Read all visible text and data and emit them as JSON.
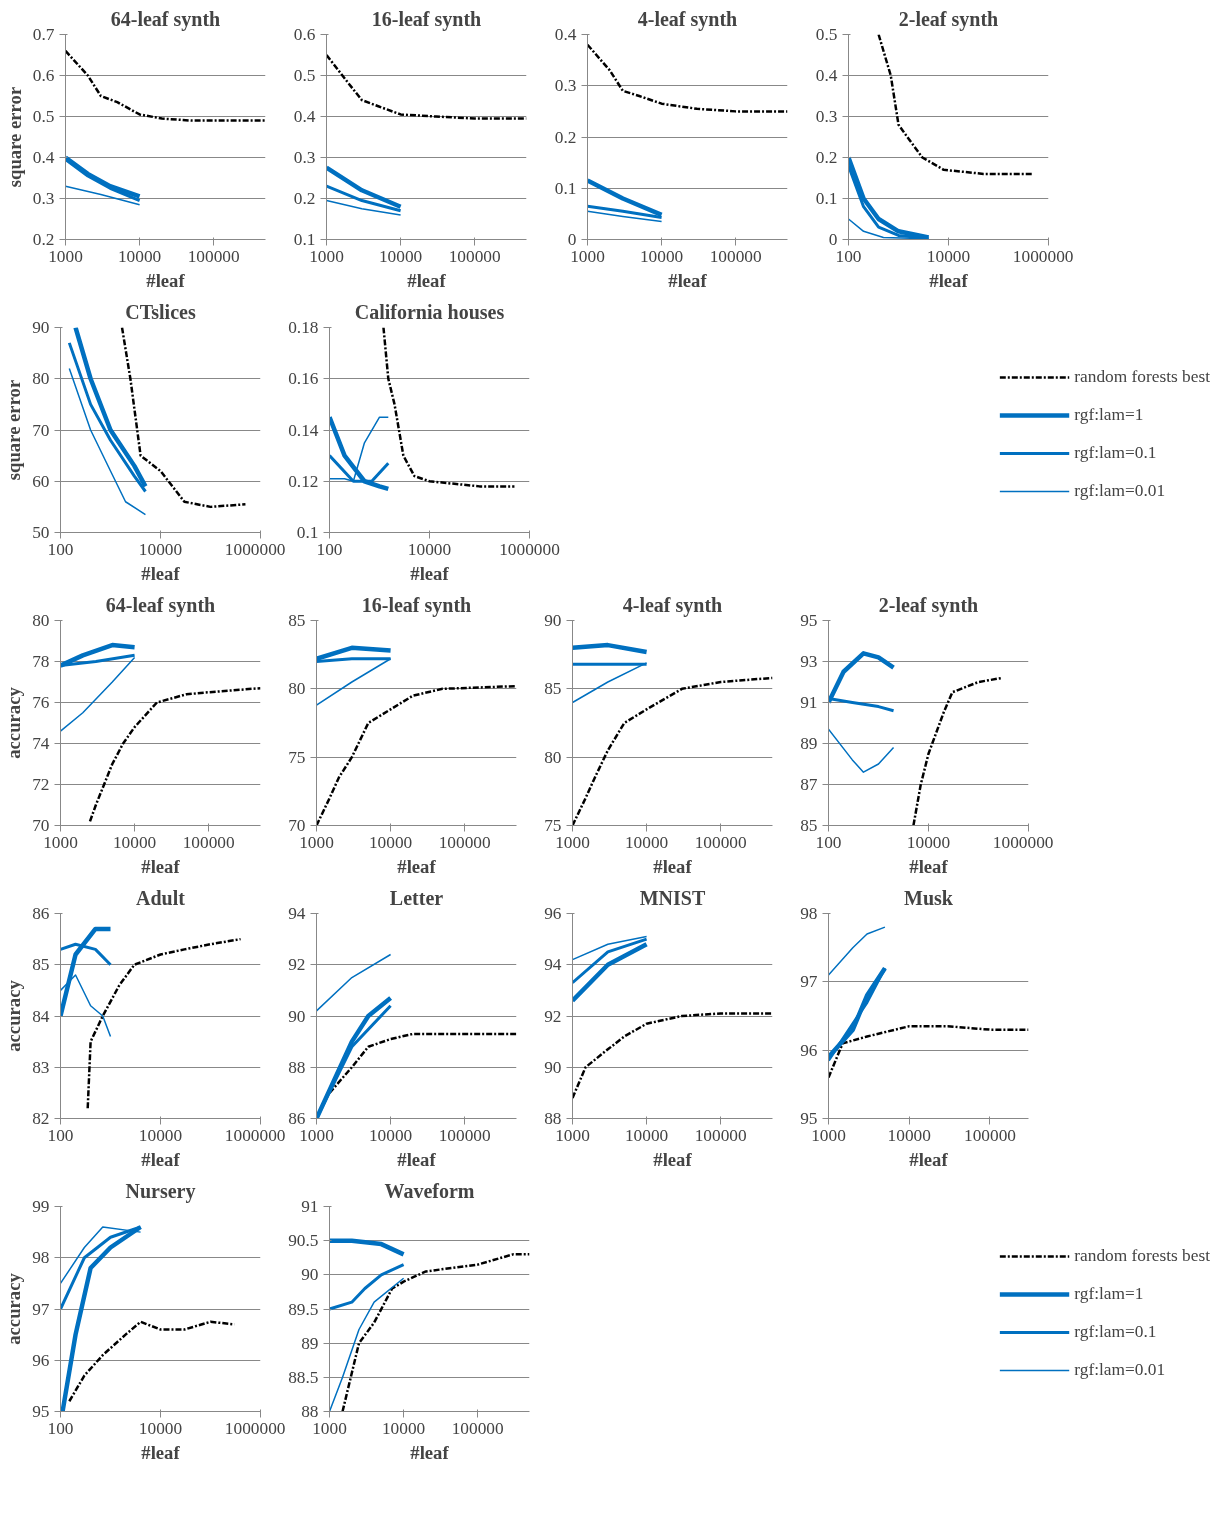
{
  "chart_data": [
    {
      "type": "line",
      "title": "64-leaf synth",
      "xlabel": "#leaf",
      "ylabel": "square error",
      "log": "x",
      "grid": "y",
      "xlim": [
        1000,
        500000
      ],
      "xticks": [
        1000,
        10000,
        100000
      ],
      "ylim": [
        0.2,
        0.7
      ],
      "yticks": [
        0.2,
        0.3,
        0.4,
        0.5,
        0.6,
        0.7
      ],
      "series": [
        {
          "color": "#000000",
          "line_style": "dashdot",
          "x": [
            1000,
            2000,
            3000,
            5000,
            10000,
            20000,
            50000,
            100000,
            500000
          ],
          "values": [
            0.66,
            0.6,
            0.55,
            0.535,
            0.505,
            0.495,
            0.49,
            0.49,
            0.49
          ]
        },
        {
          "color": "#0070c0",
          "x": [
            1000,
            2000,
            4000,
            10000
          ],
          "values": [
            0.4,
            0.36,
            0.33,
            0.305
          ]
        },
        {
          "color": "#0070c0",
          "x": [
            1000,
            2000,
            4000,
            10000
          ],
          "values": [
            0.395,
            0.355,
            0.325,
            0.295
          ]
        },
        {
          "color": "#0070c0",
          "x": [
            1000,
            3000,
            10000
          ],
          "values": [
            0.33,
            0.31,
            0.285
          ]
        }
      ]
    },
    {
      "type": "line",
      "title": "16-leaf synth",
      "xlabel": "#leaf",
      "log": "x",
      "grid": "y",
      "xlim": [
        1000,
        500000
      ],
      "xticks": [
        1000,
        10000,
        100000
      ],
      "ylim": [
        0.1,
        0.6
      ],
      "yticks": [
        0.1,
        0.2,
        0.3,
        0.4,
        0.5,
        0.6
      ],
      "series": [
        {
          "color": "#000000",
          "line_style": "dashdot",
          "x": [
            1000,
            2000,
            3000,
            5000,
            10000,
            30000,
            100000,
            500000
          ],
          "values": [
            0.55,
            0.48,
            0.44,
            0.425,
            0.405,
            0.4,
            0.395,
            0.395
          ]
        },
        {
          "color": "#0070c0",
          "x": [
            1000,
            3000,
            10000
          ],
          "values": [
            0.275,
            0.22,
            0.18
          ]
        },
        {
          "color": "#0070c0",
          "x": [
            1000,
            3000,
            10000
          ],
          "values": [
            0.23,
            0.195,
            0.17
          ]
        },
        {
          "color": "#0070c0",
          "x": [
            1000,
            3000,
            10000
          ],
          "values": [
            0.195,
            0.175,
            0.16
          ]
        }
      ]
    },
    {
      "type": "line",
      "title": "4-leaf synth",
      "xlabel": "#leaf",
      "log": "x",
      "grid": "y",
      "xlim": [
        1000,
        500000
      ],
      "xticks": [
        1000,
        10000,
        100000
      ],
      "ylim": [
        0,
        0.4
      ],
      "yticks": [
        0,
        0.1,
        0.2,
        0.3,
        0.4
      ],
      "series": [
        {
          "color": "#000000",
          "line_style": "dashdot",
          "x": [
            1000,
            2000,
            3000,
            5000,
            10000,
            30000,
            100000,
            500000
          ],
          "values": [
            0.38,
            0.33,
            0.29,
            0.28,
            0.265,
            0.255,
            0.25,
            0.25
          ]
        },
        {
          "color": "#0070c0",
          "x": [
            1000,
            3000,
            10000
          ],
          "values": [
            0.115,
            0.08,
            0.048
          ]
        },
        {
          "color": "#0070c0",
          "x": [
            1000,
            3000,
            10000
          ],
          "values": [
            0.065,
            0.055,
            0.043
          ]
        },
        {
          "color": "#0070c0",
          "x": [
            1000,
            3000,
            10000
          ],
          "values": [
            0.055,
            0.045,
            0.035
          ]
        }
      ]
    },
    {
      "type": "line",
      "title": "2-leaf synth",
      "xlabel": "#leaf",
      "log": "x",
      "grid": "y",
      "xlim": [
        100,
        1000000
      ],
      "xticks": [
        100,
        10000,
        1000000
      ],
      "ylim": [
        0,
        0.5
      ],
      "yticks": [
        0,
        0.1,
        0.2,
        0.3,
        0.4,
        0.5
      ],
      "series": [
        {
          "color": "#000000",
          "line_style": "dashdot",
          "x": [
            400,
            700,
            1000,
            1500,
            3000,
            8000,
            20000,
            50000,
            500000
          ],
          "values": [
            0.5,
            0.4,
            0.28,
            0.25,
            0.2,
            0.17,
            0.165,
            0.16,
            0.16
          ]
        },
        {
          "color": "#0070c0",
          "x": [
            100,
            200,
            400,
            1000,
            4000
          ],
          "values": [
            0.2,
            0.1,
            0.05,
            0.02,
            0.005
          ]
        },
        {
          "color": "#0070c0",
          "x": [
            100,
            200,
            400,
            1000,
            4000
          ],
          "values": [
            0.18,
            0.08,
            0.03,
            0.01,
            0.003
          ]
        },
        {
          "color": "#0070c0",
          "x": [
            100,
            200,
            500,
            4000
          ],
          "values": [
            0.05,
            0.02,
            0.005,
            0.002
          ]
        }
      ]
    },
    {
      "type": "line",
      "title": "CTslices",
      "xlabel": "#leaf",
      "ylabel": "square error",
      "log": "x",
      "grid": "y",
      "xlim": [
        100,
        1000000
      ],
      "xticks": [
        100,
        10000,
        1000000
      ],
      "ylim": [
        50,
        90
      ],
      "yticks": [
        50,
        60,
        70,
        80,
        90
      ],
      "series": [
        {
          "color": "#000000",
          "line_style": "dashdot",
          "x": [
            1700,
            2500,
            4000,
            10000,
            30000,
            100000,
            500000
          ],
          "values": [
            90,
            80,
            65,
            62,
            56,
            55,
            55.5
          ]
        },
        {
          "color": "#0070c0",
          "x": [
            200,
            400,
            1000,
            3000,
            5000
          ],
          "values": [
            90,
            80,
            70,
            63,
            59
          ]
        },
        {
          "color": "#0070c0",
          "x": [
            150,
            400,
            1000,
            3000,
            5000
          ],
          "values": [
            87,
            75,
            68,
            61,
            58
          ]
        },
        {
          "color": "#0070c0",
          "x": [
            150,
            400,
            1000,
            2000,
            5000
          ],
          "values": [
            82,
            70,
            62,
            56,
            53.5
          ]
        }
      ]
    },
    {
      "type": "line",
      "title": "California houses",
      "xlabel": "#leaf",
      "log": "x",
      "grid": "y",
      "legend": "right",
      "xlim": [
        100,
        1000000
      ],
      "xticks": [
        100,
        10000,
        1000000
      ],
      "ylim": [
        0.1,
        0.18
      ],
      "yticks": [
        0.1,
        0.12,
        0.14,
        0.16,
        0.18
      ],
      "series": [
        {
          "name": "random forests best",
          "color": "#000000",
          "line_style": "dashdot",
          "x": [
            1200,
            1500,
            2000,
            3000,
            5000,
            10000,
            100000,
            500000
          ],
          "values": [
            0.18,
            0.16,
            0.15,
            0.13,
            0.122,
            0.12,
            0.118,
            0.118
          ]
        },
        {
          "name": "rgf:lam=1",
          "color": "#0070c0",
          "x": [
            100,
            200,
            500,
            1000,
            1500
          ],
          "values": [
            0.145,
            0.13,
            0.12,
            0.118,
            0.117
          ]
        },
        {
          "name": "rgf:lam=0.1",
          "color": "#0070c0",
          "x": [
            100,
            300,
            700,
            1200,
            1500
          ],
          "values": [
            0.13,
            0.12,
            0.12,
            0.125,
            0.127
          ]
        },
        {
          "name": "rgf:lam=0.01",
          "color": "#0070c0",
          "x": [
            100,
            200,
            300,
            500,
            1000,
            1500
          ],
          "values": [
            0.121,
            0.121,
            0.12,
            0.135,
            0.145,
            0.145
          ]
        }
      ]
    },
    {
      "type": "line",
      "title": "64-leaf synth",
      "xlabel": "#leaf",
      "ylabel": "accuracy",
      "log": "x",
      "grid": "y",
      "xlim": [
        1000,
        500000
      ],
      "xticks": [
        1000,
        10000,
        100000
      ],
      "ylim": [
        70,
        80
      ],
      "yticks": [
        70,
        72,
        74,
        76,
        78,
        80
      ],
      "series": [
        {
          "color": "#000000",
          "line_style": "dashdot",
          "x": [
            2500,
            3000,
            5000,
            7000,
            10000,
            20000,
            50000,
            100000,
            500000
          ],
          "values": [
            70.2,
            71,
            73,
            74,
            74.8,
            76,
            76.4,
            76.5,
            76.7
          ]
        },
        {
          "color": "#0070c0",
          "x": [
            1000,
            2000,
            5000,
            10000
          ],
          "values": [
            77.8,
            78.3,
            78.8,
            78.7
          ]
        },
        {
          "color": "#0070c0",
          "x": [
            1000,
            3000,
            10000
          ],
          "values": [
            77.8,
            78,
            78.3
          ]
        },
        {
          "color": "#0070c0",
          "x": [
            1000,
            2000,
            5000,
            10000
          ],
          "values": [
            74.6,
            75.5,
            77,
            78.2
          ]
        }
      ]
    },
    {
      "type": "line",
      "title": "16-leaf synth",
      "xlabel": "#leaf",
      "log": "x",
      "grid": "y",
      "xlim": [
        1000,
        500000
      ],
      "xticks": [
        1000,
        10000,
        100000
      ],
      "ylim": [
        70,
        85
      ],
      "yticks": [
        70,
        75,
        80,
        85
      ],
      "series": [
        {
          "color": "#000000",
          "line_style": "dashdot",
          "x": [
            1000,
            1500,
            2000,
            3000,
            5000,
            10000,
            20000,
            50000,
            500000
          ],
          "values": [
            70,
            72,
            73.5,
            75,
            77.5,
            78.5,
            79.5,
            80,
            80.2
          ]
        },
        {
          "color": "#0070c0",
          "x": [
            1000,
            3000,
            10000
          ],
          "values": [
            82.2,
            83,
            82.8
          ]
        },
        {
          "color": "#0070c0",
          "x": [
            1000,
            3000,
            10000
          ],
          "values": [
            82,
            82.2,
            82.2
          ]
        },
        {
          "color": "#0070c0",
          "x": [
            1000,
            3000,
            10000
          ],
          "values": [
            78.8,
            80.5,
            82.2
          ]
        }
      ]
    },
    {
      "type": "line",
      "title": "4-leaf synth",
      "xlabel": "#leaf",
      "log": "x",
      "grid": "y",
      "xlim": [
        1000,
        500000
      ],
      "xticks": [
        1000,
        10000,
        100000
      ],
      "ylim": [
        75,
        90
      ],
      "yticks": [
        75,
        80,
        85,
        90
      ],
      "series": [
        {
          "color": "#000000",
          "line_style": "dashdot",
          "x": [
            1000,
            1500,
            2000,
            3000,
            5000,
            10000,
            30000,
            100000,
            500000
          ],
          "values": [
            75,
            77,
            78.5,
            80.5,
            82.5,
            83.5,
            85,
            85.5,
            85.8
          ]
        },
        {
          "color": "#0070c0",
          "x": [
            1000,
            3000,
            10000
          ],
          "values": [
            88,
            88.2,
            87.7
          ]
        },
        {
          "color": "#0070c0",
          "x": [
            1000,
            10000
          ],
          "values": [
            86.8,
            86.8
          ]
        },
        {
          "color": "#0070c0",
          "x": [
            1000,
            3000,
            10000
          ],
          "values": [
            84,
            85.5,
            86.9
          ]
        }
      ]
    },
    {
      "type": "line",
      "title": "2-leaf synth",
      "xlabel": "#leaf",
      "log": "x",
      "grid": "y",
      "xlim": [
        100,
        1000000
      ],
      "xticks": [
        100,
        10000,
        1000000
      ],
      "ylim": [
        85,
        95
      ],
      "yticks": [
        85,
        87,
        89,
        91,
        93,
        95
      ],
      "series": [
        {
          "color": "#000000",
          "line_style": "dashdot",
          "x": [
            5000,
            7000,
            10000,
            20000,
            30000,
            100000,
            300000
          ],
          "values": [
            85,
            87,
            88.5,
            90.5,
            91.5,
            92,
            92.2
          ]
        },
        {
          "color": "#0070c0",
          "x": [
            100,
            200,
            500,
            1000,
            2000
          ],
          "values": [
            91,
            92.5,
            93.4,
            93.2,
            92.7
          ]
        },
        {
          "color": "#0070c0",
          "x": [
            100,
            300,
            1000,
            2000
          ],
          "values": [
            91.2,
            91,
            90.8,
            90.6
          ]
        },
        {
          "color": "#0070c0",
          "x": [
            100,
            300,
            500,
            1000,
            2000
          ],
          "values": [
            89.7,
            88.2,
            87.6,
            88,
            88.8
          ]
        }
      ]
    },
    {
      "type": "line",
      "title": "Adult",
      "xlabel": "#leaf",
      "ylabel": "accuracy",
      "log": "x",
      "grid": "y",
      "xlim": [
        100,
        1000000
      ],
      "xticks": [
        100,
        10000,
        1000000
      ],
      "ylim": [
        82,
        86
      ],
      "yticks": [
        82,
        83,
        84,
        85,
        86
      ],
      "series": [
        {
          "color": "#000000",
          "line_style": "dashdot",
          "x": [
            350,
            400,
            700,
            1500,
            3000,
            10000,
            30000,
            100000,
            400000
          ],
          "values": [
            82.2,
            83.5,
            84,
            84.6,
            85,
            85.2,
            85.3,
            85.4,
            85.5
          ]
        },
        {
          "color": "#0070c0",
          "x": [
            100,
            200,
            500,
            1000
          ],
          "values": [
            84,
            85.2,
            85.7,
            85.7
          ]
        },
        {
          "color": "#0070c0",
          "x": [
            100,
            200,
            500,
            1000
          ],
          "values": [
            85.3,
            85.4,
            85.3,
            85
          ]
        },
        {
          "color": "#0070c0",
          "x": [
            100,
            200,
            400,
            700,
            1000
          ],
          "values": [
            84.5,
            84.8,
            84.2,
            84,
            83.6
          ]
        }
      ]
    },
    {
      "type": "line",
      "title": "Letter",
      "xlabel": "#leaf",
      "log": "x",
      "grid": "y",
      "xlim": [
        1000,
        500000
      ],
      "xticks": [
        1000,
        10000,
        100000
      ],
      "ylim": [
        86,
        94
      ],
      "yticks": [
        86,
        88,
        90,
        92,
        94
      ],
      "series": [
        {
          "color": "#000000",
          "line_style": "dashdot",
          "x": [
            1500,
            3000,
            5000,
            10000,
            20000,
            500000
          ],
          "values": [
            87,
            88,
            88.8,
            89.1,
            89.3,
            89.3
          ]
        },
        {
          "color": "#0070c0",
          "x": [
            1000,
            3000,
            5000,
            10000
          ],
          "values": [
            86,
            89,
            90,
            90.7
          ]
        },
        {
          "color": "#0070c0",
          "x": [
            1000,
            3000,
            10000
          ],
          "values": [
            86,
            88.8,
            90.4
          ]
        },
        {
          "color": "#0070c0",
          "x": [
            1000,
            3000,
            10000
          ],
          "values": [
            90.2,
            91.5,
            92.4
          ]
        }
      ]
    },
    {
      "type": "line",
      "title": "MNIST",
      "xlabel": "#leaf",
      "log": "x",
      "grid": "y",
      "xlim": [
        1000,
        500000
      ],
      "xticks": [
        1000,
        10000,
        100000
      ],
      "ylim": [
        88,
        96
      ],
      "yticks": [
        88,
        90,
        92,
        94,
        96
      ],
      "series": [
        {
          "color": "#000000",
          "line_style": "dashdot",
          "x": [
            1000,
            1500,
            3000,
            5000,
            10000,
            30000,
            100000,
            500000
          ],
          "values": [
            88.8,
            90,
            90.7,
            91.2,
            91.7,
            92,
            92.1,
            92.1
          ]
        },
        {
          "color": "#0070c0",
          "x": [
            1000,
            3000,
            10000
          ],
          "values": [
            92.6,
            94,
            94.8
          ]
        },
        {
          "color": "#0070c0",
          "x": [
            1000,
            3000,
            10000
          ],
          "values": [
            93.3,
            94.5,
            95
          ]
        },
        {
          "color": "#0070c0",
          "x": [
            1000,
            3000,
            10000
          ],
          "values": [
            94.2,
            94.8,
            95.1
          ]
        }
      ]
    },
    {
      "type": "line",
      "title": "Musk",
      "xlabel": "#leaf",
      "log": "x",
      "grid": "y",
      "xlim": [
        1000,
        300000
      ],
      "xticks": [
        1000,
        10000,
        100000
      ],
      "ylim": [
        95,
        98
      ],
      "yticks": [
        95,
        96,
        97,
        98
      ],
      "series": [
        {
          "color": "#000000",
          "line_style": "dashdot",
          "x": [
            1000,
            1500,
            3000,
            10000,
            30000,
            100000,
            300000
          ],
          "values": [
            95.6,
            96.1,
            96.2,
            96.35,
            96.35,
            96.3,
            96.3
          ]
        },
        {
          "color": "#0070c0",
          "x": [
            1000,
            2000,
            3000,
            5000
          ],
          "values": [
            95.9,
            96.3,
            96.8,
            97.2
          ]
        },
        {
          "color": "#0070c0",
          "x": [
            1000,
            3000,
            5000
          ],
          "values": [
            95.85,
            96.7,
            97.2
          ]
        },
        {
          "color": "#0070c0",
          "x": [
            1000,
            2000,
            3000,
            5000
          ],
          "values": [
            97.1,
            97.5,
            97.7,
            97.8
          ]
        }
      ]
    },
    {
      "type": "line",
      "title": "Nursery",
      "xlabel": "#leaf",
      "ylabel": "accuracy",
      "log": "x",
      "grid": "y",
      "xlim": [
        100,
        1000000
      ],
      "xticks": [
        100,
        10000,
        1000000
      ],
      "ylim": [
        95,
        99
      ],
      "yticks": [
        95,
        96,
        97,
        98,
        99
      ],
      "series": [
        {
          "color": "#000000",
          "line_style": "dashdot",
          "x": [
            150,
            300,
            700,
            2000,
            4000,
            10000,
            30000,
            100000,
            300000
          ],
          "values": [
            95.2,
            95.7,
            96.1,
            96.5,
            96.75,
            96.6,
            96.6,
            96.75,
            96.7
          ]
        },
        {
          "color": "#0070c0",
          "x": [
            110,
            200,
            400,
            1000,
            4000
          ],
          "values": [
            95,
            96.5,
            97.8,
            98.2,
            98.6
          ]
        },
        {
          "color": "#0070c0",
          "x": [
            100,
            300,
            1000,
            4000
          ],
          "values": [
            97,
            98,
            98.4,
            98.6
          ]
        },
        {
          "color": "#0070c0",
          "x": [
            100,
            300,
            700,
            4000
          ],
          "values": [
            97.5,
            98.2,
            98.6,
            98.5
          ]
        }
      ]
    },
    {
      "type": "line",
      "title": "Waveform",
      "xlabel": "#leaf",
      "log": "x",
      "grid": "y",
      "legend": "right",
      "xlim": [
        1000,
        500000
      ],
      "xticks": [
        1000,
        10000,
        100000
      ],
      "ylim": [
        88,
        91
      ],
      "yticks": [
        88,
        88.5,
        89,
        89.5,
        90,
        90.5,
        91
      ],
      "series": [
        {
          "name": "random forests best",
          "color": "#000000",
          "line_style": "dashdot",
          "x": [
            1500,
            2500,
            4000,
            7000,
            10000,
            20000,
            100000,
            300000,
            500000
          ],
          "values": [
            88,
            89,
            89.3,
            89.8,
            89.9,
            90.05,
            90.15,
            90.3,
            90.3
          ]
        },
        {
          "name": "rgf:lam=1",
          "color": "#0070c0",
          "x": [
            1000,
            2000,
            5000,
            10000
          ],
          "values": [
            90.5,
            90.5,
            90.45,
            90.3
          ]
        },
        {
          "name": "rgf:lam=0.1",
          "color": "#0070c0",
          "x": [
            1000,
            2000,
            3000,
            5000,
            10000
          ],
          "values": [
            89.5,
            89.6,
            89.8,
            90,
            90.15
          ]
        },
        {
          "name": "rgf:lam=0.01",
          "color": "#0070c0",
          "x": [
            1000,
            1500,
            2500,
            4000,
            10000
          ],
          "values": [
            88,
            88.5,
            89.2,
            89.6,
            89.95
          ]
        }
      ]
    }
  ]
}
